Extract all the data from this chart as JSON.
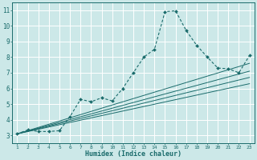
{
  "title": "",
  "xlabel": "Humidex (Indice chaleur)",
  "ylabel": "",
  "background_color": "#cce8e8",
  "grid_color": "#ffffff",
  "line_color": "#1a6b6b",
  "xlim": [
    0.5,
    23.5
  ],
  "ylim": [
    2.5,
    11.5
  ],
  "xticks": [
    1,
    2,
    3,
    4,
    5,
    6,
    7,
    8,
    9,
    10,
    11,
    12,
    13,
    14,
    15,
    16,
    17,
    18,
    19,
    20,
    21,
    22,
    23
  ],
  "yticks": [
    3,
    4,
    5,
    6,
    7,
    8,
    9,
    10,
    11
  ],
  "main_curve_x": [
    1,
    2,
    3,
    4,
    5,
    6,
    7,
    8,
    9,
    10,
    11,
    12,
    13,
    14,
    15,
    16,
    17,
    18,
    19,
    20,
    21,
    22,
    23
  ],
  "main_curve_y": [
    3.1,
    3.35,
    3.25,
    3.25,
    3.3,
    4.2,
    5.3,
    5.15,
    5.4,
    5.2,
    6.0,
    7.0,
    8.0,
    8.5,
    10.9,
    10.95,
    9.7,
    8.75,
    8.0,
    7.3,
    7.25,
    7.0,
    8.1
  ],
  "linear_lines": [
    {
      "x": [
        1,
        23
      ],
      "y": [
        3.1,
        6.3
      ]
    },
    {
      "x": [
        1,
        23
      ],
      "y": [
        3.1,
        6.7
      ]
    },
    {
      "x": [
        1,
        23
      ],
      "y": [
        3.1,
        7.1
      ]
    },
    {
      "x": [
        1,
        23
      ],
      "y": [
        3.1,
        7.6
      ]
    }
  ],
  "font_size_x": 4.5,
  "font_size_y": 5.5,
  "font_size_xlabel": 6.0
}
